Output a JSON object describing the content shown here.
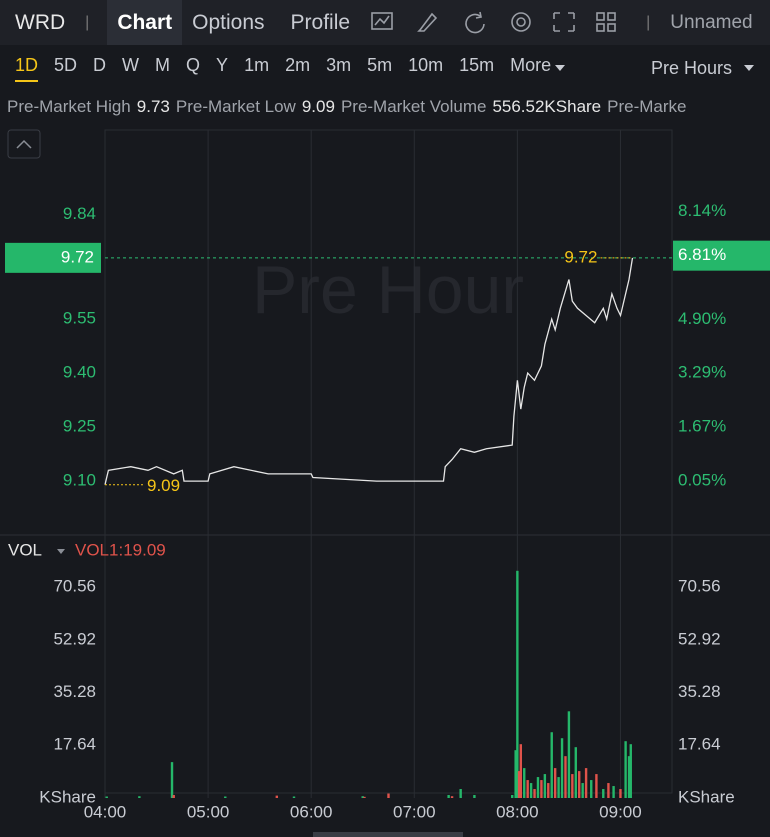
{
  "header": {
    "symbol": "WRD",
    "separator": "|",
    "tabs": [
      "Chart",
      "Options",
      "Profile"
    ],
    "layout_name": "Unnamed"
  },
  "toolbar": {
    "intervals": [
      "1D",
      "5D",
      "D",
      "W",
      "M",
      "Q",
      "Y",
      "1m",
      "2m",
      "3m",
      "5m",
      "10m",
      "15m",
      "More"
    ],
    "session": "Pre Hours"
  },
  "stats": [
    {
      "label": "Pre-Market High",
      "value": "9.73"
    },
    {
      "label": "Pre-Market Low",
      "value": "9.09"
    },
    {
      "label": "Pre-Market Volume",
      "value": "556.52KShare"
    },
    {
      "label": "Pre-Marke"
    }
  ],
  "chart_data": [
    {
      "type": "line",
      "watermark": "Pre Hour",
      "color": "#e6e6e6",
      "grid": "x",
      "x": [
        "04:00",
        "04:02",
        "04:15",
        "04:25",
        "04:30",
        "04:40",
        "04:45",
        "04:46",
        "05:00",
        "05:01",
        "05:15",
        "05:35",
        "06:00",
        "06:01",
        "06:38",
        "07:00",
        "07:17",
        "07:18",
        "07:22",
        "07:27",
        "07:35",
        "07:42",
        "07:57",
        "07:58",
        "08:00",
        "08:02",
        "08:04",
        "08:06",
        "08:10",
        "08:14",
        "08:16",
        "08:20",
        "08:22",
        "08:25",
        "08:30",
        "08:32",
        "08:35",
        "08:40",
        "08:45",
        "08:50",
        "08:52",
        "08:55",
        "08:58",
        "09:00",
        "09:03",
        "09:05",
        "09:07"
      ],
      "values": [
        9.09,
        9.13,
        9.14,
        9.13,
        9.14,
        9.12,
        9.13,
        9.1,
        9.1,
        9.12,
        9.14,
        9.12,
        9.12,
        9.11,
        9.1,
        9.1,
        9.1,
        9.14,
        9.16,
        9.19,
        9.18,
        9.19,
        9.2,
        9.28,
        9.38,
        9.3,
        9.36,
        9.4,
        9.38,
        9.42,
        9.48,
        9.55,
        9.52,
        9.58,
        9.66,
        9.6,
        9.58,
        9.56,
        9.54,
        9.58,
        9.55,
        9.62,
        9.58,
        9.56,
        9.62,
        9.66,
        9.72
      ],
      "xlim": [
        "04:00",
        "09:30"
      ],
      "xticks": [
        "04:00",
        "05:00",
        "06:00",
        "07:00",
        "08:00",
        "09:00"
      ],
      "ylim": [
        8.956,
        10.075
      ],
      "yticks": [
        {
          "value": 9.1,
          "label": "9.10"
        },
        9.25,
        {
          "value": 9.4,
          "label": "9.40"
        },
        9.55,
        9.84
      ],
      "y2lim": [
        -1.51,
        10.58
      ],
      "y2ticks": [
        {
          "value": 0.05,
          "label": "0.05%"
        },
        {
          "value": 1.67,
          "label": "1.67%"
        },
        {
          "value": 3.29,
          "label": "3.29%"
        },
        {
          "value": 4.9,
          "label": "4.90%"
        },
        {
          "value": 8.14,
          "label": "8.14%"
        }
      ],
      "last_price": {
        "value": 9.72,
        "label": "9.72"
      },
      "last_change": {
        "value": 6.81,
        "label": "6.81%"
      },
      "low_mark": {
        "value": 9.09,
        "label": "9.09"
      }
    },
    {
      "type": "bar",
      "indicator": "VOL",
      "indicator_value": "VOL1:19.09",
      "unit": "KShare",
      "x": [
        "04:01",
        "04:20",
        "04:39",
        "04:40",
        "05:10",
        "05:40",
        "05:50",
        "06:30",
        "06:31",
        "06:45",
        "07:20",
        "07:22",
        "07:27",
        "07:35",
        "07:57",
        "07:59",
        "08:00",
        "08:01",
        "08:02",
        "08:04",
        "08:06",
        "08:08",
        "08:10",
        "08:12",
        "08:14",
        "08:16",
        "08:18",
        "08:20",
        "08:22",
        "08:24",
        "08:26",
        "08:28",
        "08:30",
        "08:32",
        "08:34",
        "08:36",
        "08:38",
        "08:40",
        "08:43",
        "08:46",
        "08:50",
        "08:53",
        "08:56",
        "09:00",
        "09:03",
        "09:05",
        "09:06"
      ],
      "values": [
        0.5,
        0.6,
        12,
        1,
        0.5,
        0.8,
        0.5,
        0.6,
        0.4,
        1.5,
        1,
        0.6,
        3,
        1,
        1,
        16,
        76,
        9,
        18,
        10,
        6,
        5,
        3,
        7,
        6,
        8,
        5,
        22,
        10,
        7,
        20,
        14,
        29,
        8,
        17,
        9,
        5,
        10,
        6,
        8,
        3,
        5,
        4,
        3,
        19,
        14,
        18
      ],
      "colors": [
        "#25b76a",
        "#25b76a",
        "#25b76a",
        "#e0534b",
        "#25b76a",
        "#e0534b",
        "#25b76a",
        "#25b76a",
        "#e0534b",
        "#e0534b",
        "#25b76a",
        "#e0534b",
        "#25b76a",
        "#25b76a",
        "#25b76a",
        "#25b76a",
        "#25b76a",
        "#e0534b",
        "#e0534b",
        "#25b76a",
        "#e0534b",
        "#25b76a",
        "#e0534b",
        "#25b76a",
        "#e0534b",
        "#25b76a",
        "#e0534b",
        "#25b76a",
        "#e0534b",
        "#25b76a",
        "#25b76a",
        "#e0534b",
        "#25b76a",
        "#e0534b",
        "#25b76a",
        "#e0534b",
        "#25b76a",
        "#e0534b",
        "#25b76a",
        "#e0534b",
        "#25b76a",
        "#e0534b",
        "#25b76a",
        "#e0534b",
        "#25b76a",
        "#25b76a",
        "#25b76a"
      ],
      "xlim": [
        "04:00",
        "09:30"
      ],
      "ylim": [
        0,
        86.3
      ],
      "yticks": [
        17.64,
        35.28,
        52.92,
        70.56
      ]
    }
  ]
}
